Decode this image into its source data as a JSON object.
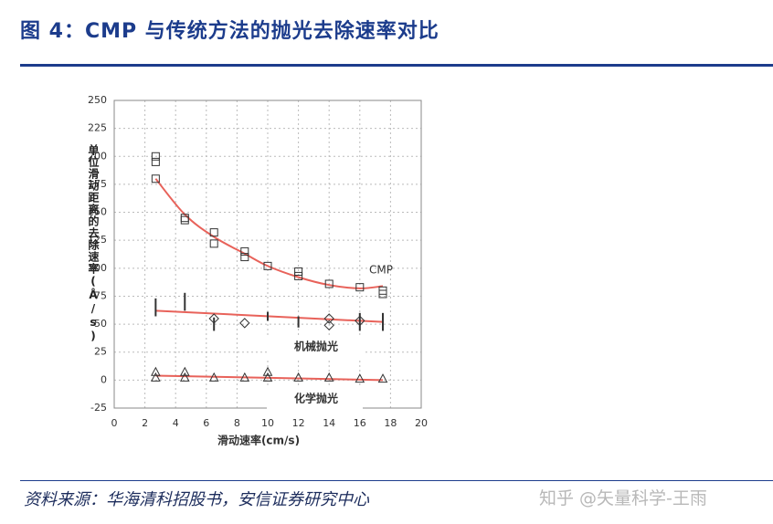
{
  "chart_data": {
    "type": "scatter",
    "title": "图 4：CMP 与传统方法的抛光去除速率对比",
    "x_label": "滑动速率(cm/s)",
    "y_label": "单位滑动距离的去除速率(Å/s)",
    "source": "资料来源：华海清科招股书，安信证券研究中心",
    "watermark": "知乎 @矢量科学-王雨",
    "xlim": [
      0,
      20
    ],
    "xticks": [
      0,
      2,
      4,
      6,
      8,
      10,
      12,
      14,
      16,
      18,
      20
    ],
    "ylim": [
      -25,
      250
    ],
    "yticks": [
      -25,
      0,
      25,
      50,
      75,
      100,
      125,
      150,
      175,
      200,
      225,
      250
    ],
    "grid": true,
    "fit_color": "#e8625a",
    "series": [
      {
        "name": "CMP",
        "marker": "square",
        "color": "#333333",
        "x": [
          2.7,
          2.7,
          2.7,
          4.6,
          4.6,
          6.5,
          6.5,
          8.5,
          8.5,
          10,
          12,
          12,
          14,
          16,
          17.5,
          17.5
        ],
        "values": [
          200,
          195,
          180,
          145,
          143,
          132,
          122,
          115,
          110,
          102,
          97,
          93,
          86,
          83,
          80,
          77
        ],
        "fit_x": [
          2.7,
          4.6,
          6.5,
          8.5,
          10,
          12,
          14,
          16,
          17.5
        ],
        "fit_values": [
          180,
          148,
          128,
          113,
          102,
          92,
          85,
          82,
          84
        ]
      },
      {
        "name": "机械抛光",
        "marker": "diamond",
        "color": "#333333",
        "x": [
          6.5,
          8.5,
          14,
          14,
          16
        ],
        "values": [
          55,
          51,
          55,
          49,
          53
        ],
        "bar_x": [
          2.7,
          4.6,
          6.5,
          10,
          12,
          16,
          17.5
        ],
        "bar_values": [
          65,
          70,
          50,
          57,
          52,
          52,
          52
        ],
        "bar_errors": [
          8,
          8,
          6,
          4,
          5,
          8,
          8
        ],
        "fit_x": [
          2.7,
          17.5
        ],
        "fit_values": [
          62,
          52
        ]
      },
      {
        "name": "化学抛光",
        "marker": "triangle",
        "color": "#333333",
        "x": [
          2.7,
          2.7,
          4.6,
          4.6,
          6.5,
          8.5,
          10,
          10,
          12,
          14,
          16,
          17.5
        ],
        "values": [
          7,
          2,
          7,
          2,
          2,
          2,
          7,
          2,
          2,
          2,
          1,
          1
        ],
        "fit_x": [
          2.7,
          17.5
        ],
        "fit_values": [
          4,
          0
        ]
      }
    ]
  }
}
